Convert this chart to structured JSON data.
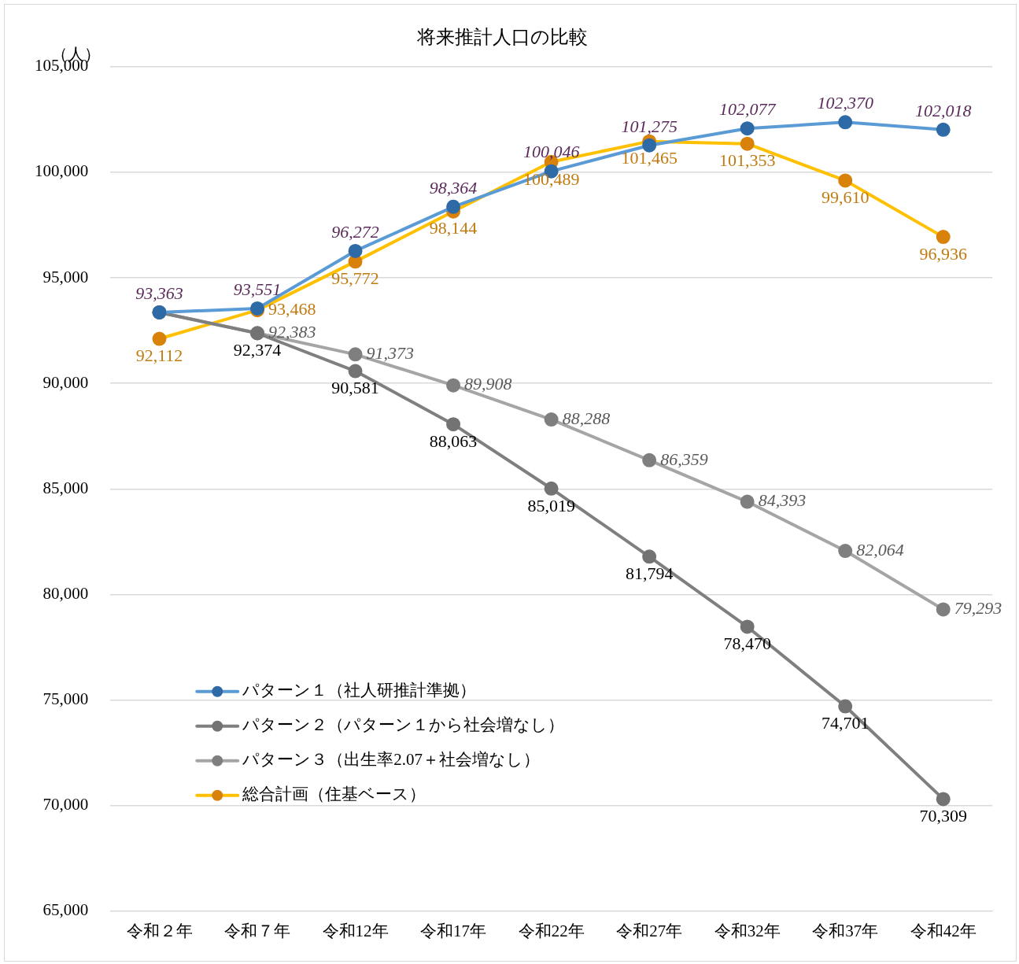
{
  "chart_data": {
    "type": "line",
    "title": "将来推計人口の比較",
    "ylabel": "（人）",
    "categories": [
      "令和２年",
      "令和７年",
      "令和12年",
      "令和17年",
      "令和22年",
      "令和27年",
      "令和32年",
      "令和37年",
      "令和42年"
    ],
    "series": [
      {
        "name": "パターン１（社人研推計準拠）",
        "color": "#5b9bd5",
        "values": [
          93363,
          93551,
          96272,
          98364,
          100046,
          101275,
          102077,
          102370,
          102018
        ],
        "value_labels": [
          "93,363",
          "93,551",
          "96,272",
          "98,364",
          "100,046",
          "101,275",
          "102,077",
          "102,370",
          "102,018"
        ]
      },
      {
        "name": "パターン２（パターン１から社会増なし）",
        "color": "#7f7f7f",
        "values": [
          93363,
          92374,
          90581,
          88063,
          85019,
          81794,
          78470,
          74701,
          70309
        ],
        "value_labels": [
          null,
          "92,374",
          "90,581",
          "88,063",
          "85,019",
          "81,794",
          "78,470",
          "74,701",
          "70,309"
        ]
      },
      {
        "name": "パターン３（出生率2.07＋社会増なし）",
        "color": "#a5a5a5",
        "values": [
          93363,
          92383,
          91373,
          89908,
          88288,
          86359,
          84393,
          82064,
          79293
        ],
        "value_labels": [
          null,
          "92,383",
          "91,373",
          "89,908",
          "88,288",
          "86,359",
          "84,393",
          "82,064",
          "79,293"
        ]
      },
      {
        "name": "総合計画（住基ベース）",
        "color": "#ffc000",
        "values": [
          92112,
          93468,
          95772,
          98144,
          100489,
          101465,
          101353,
          99610,
          96936
        ],
        "value_labels": [
          "92,112",
          "93,468",
          "95,772",
          "98,144",
          "100,489",
          "101,465",
          "101,353",
          "99,610",
          "96,936"
        ]
      }
    ],
    "ylim": [
      65000,
      105000
    ],
    "yticks": [
      {
        "value": 65000,
        "label": "65,000"
      },
      {
        "value": 70000,
        "label": "70,000"
      },
      {
        "value": 75000,
        "label": "75,000"
      },
      {
        "value": 80000,
        "label": "80,000"
      },
      {
        "value": 85000,
        "label": "85,000"
      },
      {
        "value": 90000,
        "label": "90,000"
      },
      {
        "value": 95000,
        "label": "95,000"
      },
      {
        "value": 100000,
        "label": "100,000"
      },
      {
        "value": 105000,
        "label": "105,000"
      }
    ],
    "grid": "y",
    "legend": "bottom left",
    "marker": "circle",
    "line_style": "solid"
  }
}
